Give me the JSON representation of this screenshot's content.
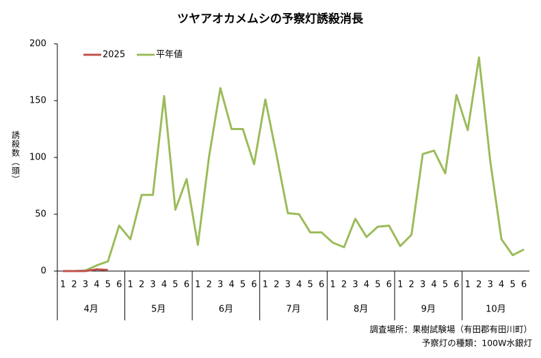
{
  "chart_data": {
    "type": "line",
    "title": "ツヤアオカメムシの予察灯誘殺消長",
    "y_label": "誘殺数（頭）",
    "categories": [
      "1",
      "2",
      "3",
      "4",
      "5",
      "6",
      "1",
      "2",
      "3",
      "4",
      "5",
      "6",
      "1",
      "2",
      "3",
      "4",
      "5",
      "6",
      "1",
      "2",
      "3",
      "4",
      "5",
      "6",
      "1",
      "2",
      "3",
      "4",
      "5",
      "6",
      "1",
      "2",
      "3",
      "4",
      "5",
      "6",
      "1",
      "2",
      "3",
      "4",
      "5",
      "6"
    ],
    "category_groups": [
      "4月",
      "5月",
      "6月",
      "7月",
      "8月",
      "9月",
      "10月"
    ],
    "series": [
      {
        "name": "2025",
        "color": "#c0504d",
        "values": [
          0,
          0,
          0,
          1.5,
          1,
          null,
          null,
          null,
          null,
          null,
          null,
          null,
          null,
          null,
          null,
          null,
          null,
          null,
          null,
          null,
          null,
          null,
          null,
          null,
          null,
          null,
          null,
          null,
          null,
          null,
          null,
          null,
          null,
          null,
          null,
          null,
          null,
          null,
          null,
          null,
          null,
          null
        ]
      },
      {
        "name": "平年値",
        "color": "#9bbb59",
        "values": [
          0,
          0,
          0.5,
          5,
          8.5,
          40,
          28,
          67,
          67,
          154,
          54,
          81,
          23,
          101,
          161,
          125,
          125,
          94,
          151,
          102,
          51,
          50,
          34,
          34,
          25,
          21,
          46,
          30,
          39,
          40,
          22,
          32,
          103,
          106,
          86,
          155,
          124,
          188,
          97,
          28,
          14,
          19
        ]
      }
    ],
    "ylim": [
      0,
      200
    ],
    "yticks": [
      0,
      50,
      100,
      150,
      200
    ],
    "legend": "top-left",
    "notes": [
      "調査場所：果樹試験場（有田郡有田川町）",
      "予察灯の種類：100W水銀灯"
    ]
  }
}
